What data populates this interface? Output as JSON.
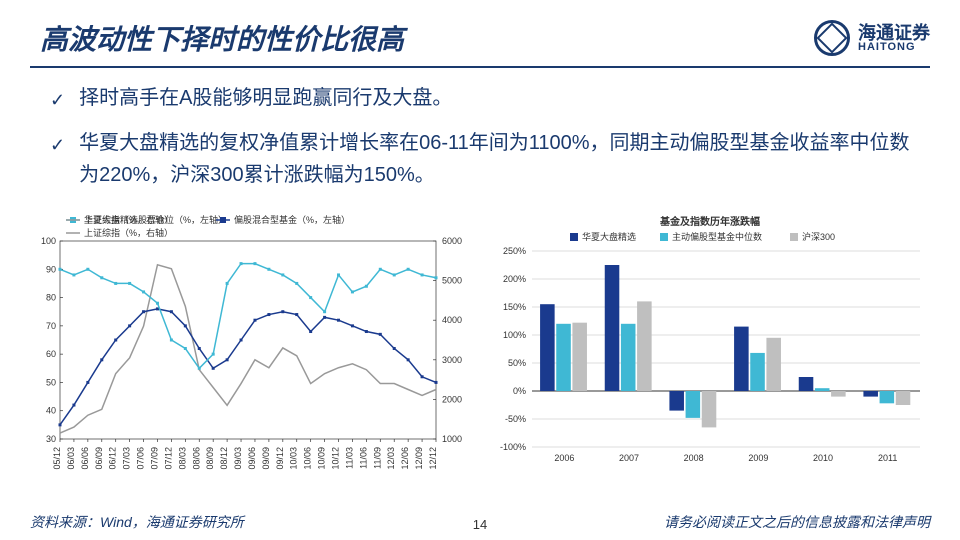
{
  "header": {
    "title": "高波动性下择时的性价比很高",
    "logo_cn": "海通证券",
    "logo_en": "HAITONG"
  },
  "bullets": [
    "择时高手在A股能够明显跑赢同行及大盘。",
    "华夏大盘精选的复权净值累计增长率在06-11年间为1100%，同期主动偏股型基金收益率中位数为220%，沪深300累计涨跌幅为150%。"
  ],
  "footer": {
    "left": "资料来源：Wind，海通证券研究所",
    "right": "请务必阅读正文之后的信息披露和法律声明",
    "page": "14"
  },
  "line_chart": {
    "type": "line",
    "legend": [
      {
        "label": "华夏大盘精选股票仓位（%，左轴）",
        "color": "#3fb8d4",
        "marker": "square"
      },
      {
        "label": "偏股混合型基金（%，左轴）",
        "color": "#1a3a8e",
        "marker": "square"
      },
      {
        "label": "上证综指（%，右轴）",
        "color": "#999999",
        "marker": "none"
      }
    ],
    "x_labels": [
      "05/12",
      "06/03",
      "06/06",
      "06/09",
      "06/12",
      "07/03",
      "07/06",
      "07/09",
      "07/12",
      "08/03",
      "08/06",
      "08/09",
      "08/12",
      "09/03",
      "09/06",
      "09/09",
      "09/12",
      "10/03",
      "10/06",
      "10/09",
      "10/12",
      "11/03",
      "11/06",
      "11/09",
      "12/03",
      "12/06",
      "12/09",
      "12/12"
    ],
    "y_left": {
      "min": 30,
      "max": 100,
      "step": 10
    },
    "y_right": {
      "min": 1000,
      "max": 6000,
      "step": 1000
    },
    "series_cyan": [
      90,
      88,
      90,
      87,
      85,
      85,
      82,
      78,
      65,
      62,
      55,
      60,
      85,
      92,
      92,
      90,
      88,
      85,
      80,
      75,
      88,
      82,
      84,
      90,
      88,
      90,
      88,
      87
    ],
    "series_navy": [
      35,
      42,
      50,
      58,
      65,
      70,
      75,
      76,
      75,
      70,
      62,
      55,
      58,
      65,
      72,
      74,
      75,
      74,
      68,
      73,
      72,
      70,
      68,
      67,
      62,
      58,
      52,
      50
    ],
    "series_gray": [
      1150,
      1300,
      1600,
      1750,
      2650,
      3050,
      3850,
      5400,
      5300,
      4350,
      2750,
      2300,
      1850,
      2400,
      3000,
      2800,
      3300,
      3100,
      2400,
      2650,
      2800,
      2900,
      2750,
      2400,
      2400,
      2250,
      2100,
      2250
    ],
    "background": "#ffffff",
    "grid_color": "#d0d0d0",
    "line_width": 1.5,
    "marker_size": 3
  },
  "bar_chart": {
    "type": "bar",
    "title": "基金及指数历年涨跌幅",
    "legend": [
      {
        "label": "华夏大盘精选",
        "color": "#1a3a8e"
      },
      {
        "label": "主动偏股型基金中位数",
        "color": "#3fb8d4"
      },
      {
        "label": "沪深300",
        "color": "#bfbfbf"
      }
    ],
    "categories": [
      "2006",
      "2007",
      "2008",
      "2009",
      "2010",
      "2011"
    ],
    "series": [
      [
        155,
        225,
        -35,
        115,
        25,
        -10
      ],
      [
        120,
        120,
        -48,
        68,
        5,
        -22
      ],
      [
        122,
        160,
        -65,
        95,
        -10,
        -25
      ]
    ],
    "y": {
      "min": -100,
      "max": 250,
      "step": 50
    },
    "background": "#ffffff",
    "grid_color": "#d0d0d0",
    "bar_group_width": 0.75
  }
}
